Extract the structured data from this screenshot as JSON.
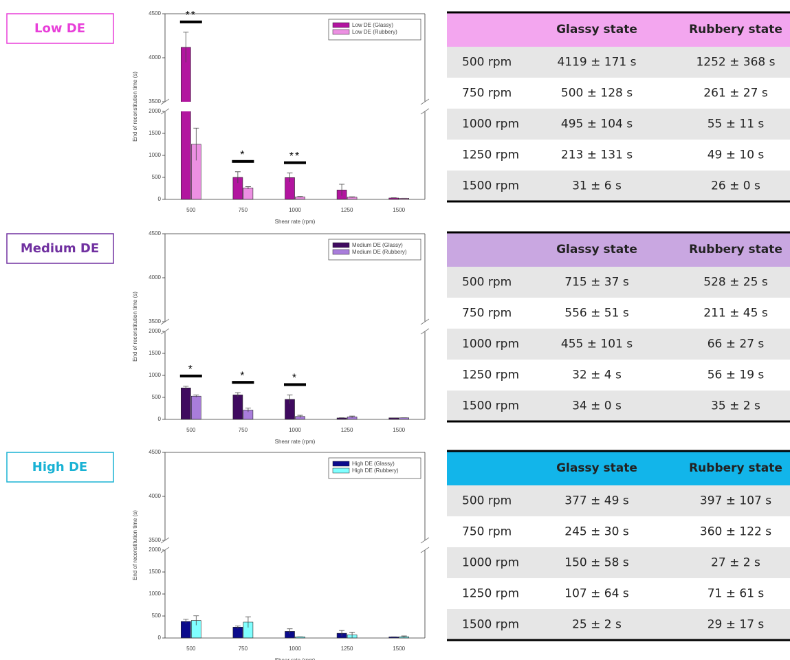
{
  "labels": [
    {
      "text": "Low DE",
      "color": "#e83fd9"
    },
    {
      "text": "Medium DE",
      "color": "#7030a0"
    },
    {
      "text": "High DE",
      "color": "#19b2d4"
    }
  ],
  "chart_data": [
    {
      "type": "bar",
      "xlabel": "Shear rate (rpm)",
      "ylabel": "End of reconstitution time (s)",
      "categories": [
        "500",
        "750",
        "1000",
        "1250",
        "1500"
      ],
      "ylim": [
        0,
        4500
      ],
      "y_break": [
        2000,
        3500
      ],
      "yticks": [
        0,
        500,
        1000,
        1500,
        2000,
        3500,
        4000,
        4500
      ],
      "legend": "upper right",
      "series": [
        {
          "name": "Low DE (Glassy)",
          "color": "#b2159f",
          "values": [
            4119,
            500,
            495,
            213,
            31
          ],
          "errors": [
            171,
            128,
            104,
            131,
            6
          ]
        },
        {
          "name": "Low DE (Rubbery)",
          "color": "#ec90e2",
          "values": [
            1252,
            261,
            55,
            49,
            26
          ],
          "errors": [
            368,
            27,
            11,
            10,
            0
          ]
        }
      ],
      "annotations": [
        {
          "text": "**",
          "category": "500"
        },
        {
          "text": "*",
          "category": "750"
        },
        {
          "text": "**",
          "category": "1000"
        }
      ]
    },
    {
      "type": "bar",
      "xlabel": "Shear rate (rpm)",
      "ylabel": "End of reconstitution time (s)",
      "categories": [
        "500",
        "750",
        "1000",
        "1250",
        "1500"
      ],
      "ylim": [
        0,
        4500
      ],
      "y_break": [
        2000,
        3500
      ],
      "yticks": [
        0,
        500,
        1000,
        1500,
        2000,
        3500,
        4000,
        4500
      ],
      "legend": "upper right",
      "series": [
        {
          "name": "Medium DE (Glassy)",
          "color": "#3f0a5f",
          "values": [
            715,
            556,
            455,
            32,
            34
          ],
          "errors": [
            37,
            51,
            101,
            4,
            0
          ]
        },
        {
          "name": "Medium DE (Rubbery)",
          "color": "#a97ddb",
          "values": [
            528,
            211,
            66,
            56,
            35
          ],
          "errors": [
            25,
            45,
            27,
            19,
            2
          ]
        }
      ],
      "annotations": [
        {
          "text": "*",
          "category": "500"
        },
        {
          "text": "*",
          "category": "750"
        },
        {
          "text": "*",
          "category": "1000"
        }
      ]
    },
    {
      "type": "bar",
      "xlabel": "Shear rate (rpm)",
      "ylabel": "End of reconstitution time (s)",
      "categories": [
        "500",
        "750",
        "1000",
        "1250",
        "1500"
      ],
      "ylim": [
        0,
        4500
      ],
      "y_break": [
        2000,
        3500
      ],
      "yticks": [
        0,
        500,
        1000,
        1500,
        2000,
        3500,
        4000,
        4500
      ],
      "legend": "upper right",
      "series": [
        {
          "name": "High DE (Glassy)",
          "color": "#0b0b8c",
          "values": [
            377,
            245,
            150,
            107,
            25
          ],
          "errors": [
            49,
            30,
            58,
            64,
            2
          ]
        },
        {
          "name": "High DE (Rubbery)",
          "color": "#80ffff",
          "values": [
            397,
            360,
            27,
            71,
            29
          ],
          "errors": [
            107,
            122,
            2,
            61,
            17
          ]
        }
      ],
      "annotations": []
    }
  ],
  "tables": [
    {
      "header_color": "#f3a6ef",
      "header": [
        "Glassy state",
        "Rubbery state"
      ],
      "rows": [
        [
          "500 rpm",
          "4119 ± 171 s",
          "1252 ± 368 s"
        ],
        [
          "750 rpm",
          "500 ± 128 s",
          "261 ± 27 s"
        ],
        [
          "1000 rpm",
          "495 ± 104 s",
          "55 ± 11 s"
        ],
        [
          "1250 rpm",
          "213 ± 131 s",
          "49 ± 10 s"
        ],
        [
          "1500 rpm",
          "31 ± 6 s",
          "26 ± 0  s"
        ]
      ]
    },
    {
      "header_color": "#c9a7e1",
      "header": [
        "Glassy state",
        "Rubbery state"
      ],
      "rows": [
        [
          "500 rpm",
          "715 ± 37 s",
          "528 ± 25 s"
        ],
        [
          "750 rpm",
          "556 ± 51 s",
          "211 ± 45 s"
        ],
        [
          "1000 rpm",
          "455 ±  101 s",
          "66 ± 27 s"
        ],
        [
          "1250 rpm",
          "32 ± 4 s",
          "56 ± 19 s"
        ],
        [
          "1500 rpm",
          "34 ± 0 s",
          "35 ± 2 s"
        ]
      ]
    },
    {
      "header_color": "#12b5ea",
      "header": [
        "Glassy state",
        "Rubbery state"
      ],
      "rows": [
        [
          "500 rpm",
          "377 ± 49 s",
          "397 ± 107 s"
        ],
        [
          "750 rpm",
          "245 ± 30 s",
          "360 ± 122 s"
        ],
        [
          "1000 rpm",
          "150 ± 58 s",
          "27 ± 2 s"
        ],
        [
          "1250 rpm",
          "107 ± 64 s",
          "71 ± 61 s"
        ],
        [
          "1500 rpm",
          "25 ± 2 s",
          "29 ± 17 s"
        ]
      ]
    }
  ]
}
